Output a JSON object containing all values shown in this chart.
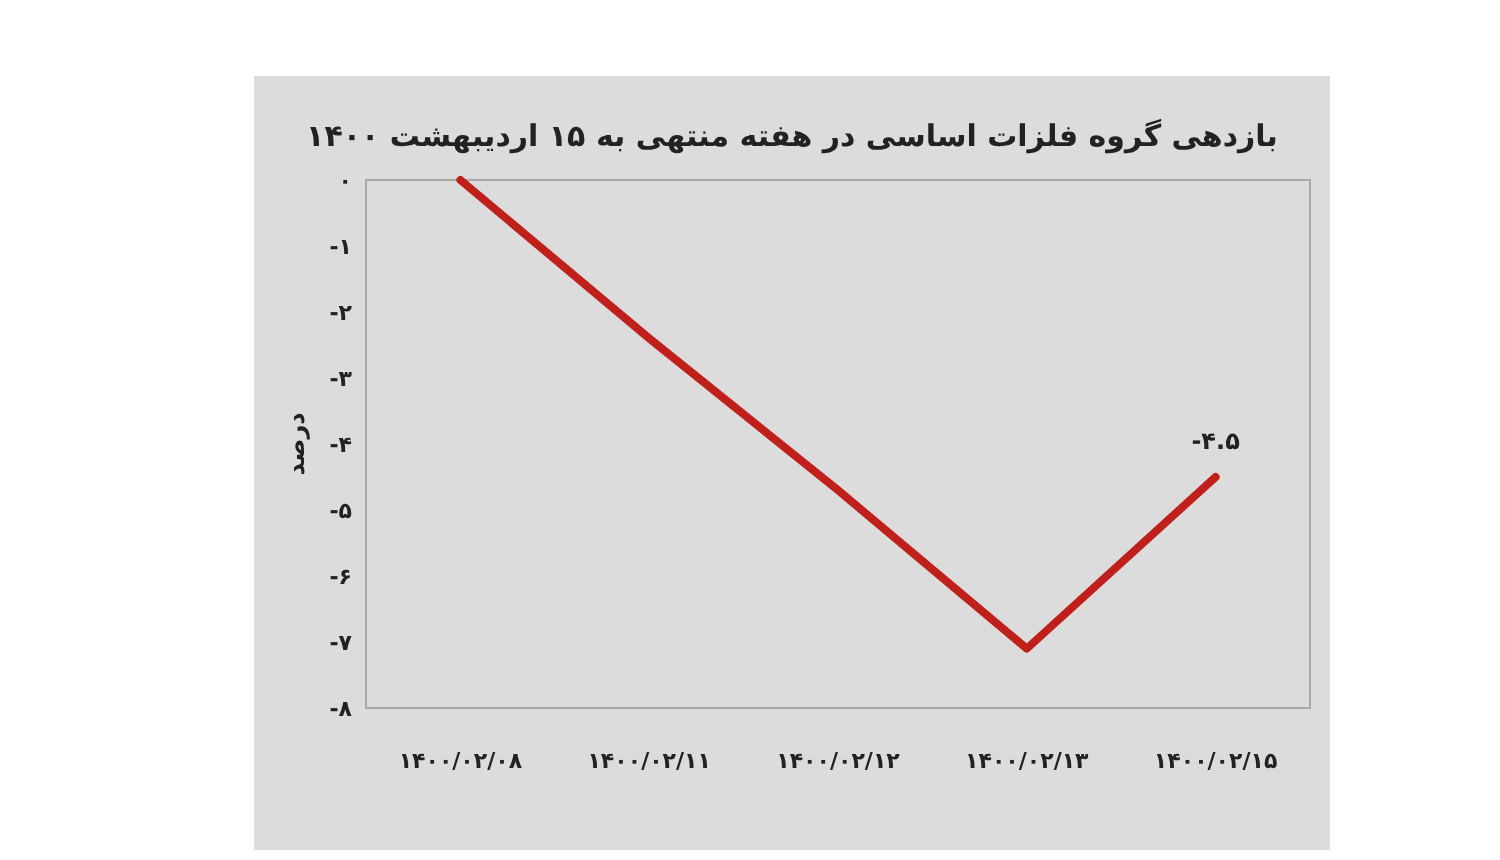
{
  "chart_data": {
    "type": "line",
    "title": "بازدهی گروه فلزات اساسی در هفته منتهی به ۱۵ اردیبهشت ۱۴۰۰",
    "ylabel": "درصد",
    "categories": [
      "۱۴۰۰/۰۲/۰۸",
      "۱۴۰۰/۰۲/۱۱",
      "۱۴۰۰/۰۲/۱۲",
      "۱۴۰۰/۰۲/۱۳",
      "۱۴۰۰/۰۲/۱۵"
    ],
    "series": [
      {
        "color": "#c0201c",
        "values": [
          0,
          -2.4,
          -4.7,
          -7.1,
          -4.5
        ],
        "value_labels": [
          null,
          null,
          null,
          null,
          "-۴.۵"
        ]
      }
    ],
    "ylim": [
      -8,
      0
    ],
    "yticks": [
      {
        "value": 0,
        "label": "۰"
      },
      {
        "value": -1,
        "label": "-۱"
      },
      {
        "value": -2,
        "label": "-۲"
      },
      {
        "value": -3,
        "label": "-۳"
      },
      {
        "value": -4,
        "label": "-۴"
      },
      {
        "value": -5,
        "label": "-۵"
      },
      {
        "value": -6,
        "label": "-۶"
      },
      {
        "value": -7,
        "label": "-۷"
      },
      {
        "value": -8,
        "label": "-۸"
      }
    ],
    "marker": "none",
    "line_style": "solid"
  }
}
